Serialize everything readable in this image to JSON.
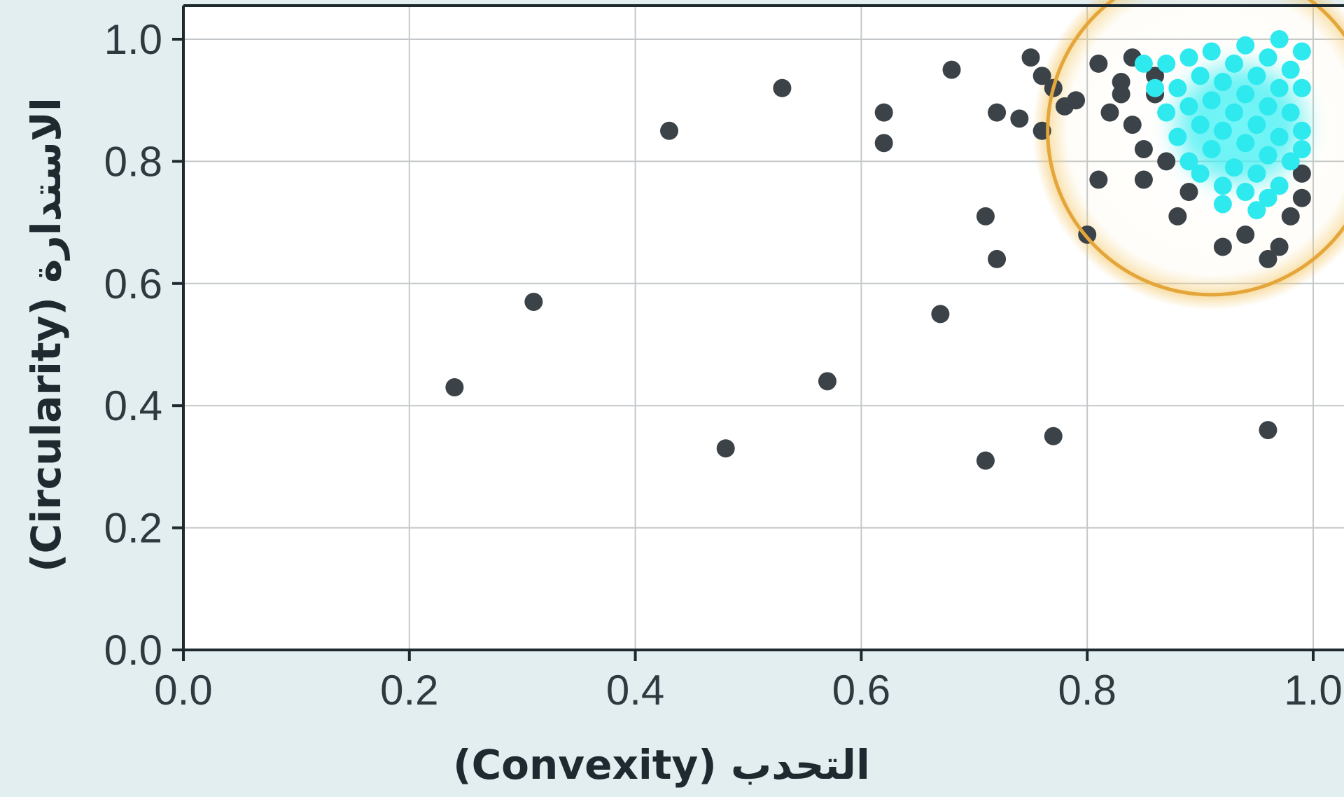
{
  "chart_data": {
    "type": "scatter",
    "title": "",
    "xlabel": "التحدب (Convexity)",
    "ylabel": "الاستدارة (Circularity)",
    "xlim": [
      0.0,
      1.0
    ],
    "ylim": [
      0.0,
      1.0
    ],
    "x_ticks": [
      "0.0",
      "0.2",
      "0.4",
      "0.6",
      "0.8",
      "1.0"
    ],
    "y_ticks": [
      "0.0",
      "0.2",
      "0.4",
      "0.6",
      "0.8",
      "1.0"
    ],
    "grid": true,
    "legend": "none",
    "highlight": {
      "shape": "circle",
      "center": [
        0.91,
        0.85
      ],
      "radius_x": 0.145,
      "color": "#e4a63a"
    },
    "colors": {
      "background": "#e3eef1",
      "plot_background": "#ffffff",
      "grid": "#c4c8ca",
      "axis": "#1f2a30",
      "point_dark": "#3b4348",
      "point_highlight": "#2ee9ee",
      "highlight_ring": "#e4a63a"
    },
    "series": [
      {
        "color": "#3b4348",
        "points": [
          [
            0.24,
            0.43
          ],
          [
            0.31,
            0.57
          ],
          [
            0.43,
            0.85
          ],
          [
            0.48,
            0.33
          ],
          [
            0.53,
            0.92
          ],
          [
            0.57,
            0.44
          ],
          [
            0.62,
            0.88
          ],
          [
            0.62,
            0.83
          ],
          [
            0.67,
            0.55
          ],
          [
            0.68,
            0.95
          ],
          [
            0.71,
            0.71
          ],
          [
            0.71,
            0.31
          ],
          [
            0.72,
            0.88
          ],
          [
            0.72,
            0.64
          ],
          [
            0.74,
            0.87
          ],
          [
            0.75,
            0.97
          ],
          [
            0.76,
            0.94
          ],
          [
            0.76,
            0.85
          ],
          [
            0.77,
            0.35
          ],
          [
            0.77,
            0.92
          ],
          [
            0.78,
            0.89
          ],
          [
            0.79,
            0.9
          ],
          [
            0.8,
            0.68
          ],
          [
            0.81,
            0.96
          ],
          [
            0.81,
            0.77
          ],
          [
            0.82,
            0.88
          ],
          [
            0.83,
            0.93
          ],
          [
            0.84,
            0.97
          ],
          [
            0.84,
            0.86
          ],
          [
            0.85,
            0.82
          ],
          [
            0.85,
            0.77
          ],
          [
            0.86,
            0.94
          ],
          [
            0.87,
            0.8
          ],
          [
            0.88,
            0.71
          ],
          [
            0.89,
            0.75
          ],
          [
            0.92,
            0.66
          ],
          [
            0.94,
            0.68
          ],
          [
            0.96,
            0.64
          ],
          [
            0.96,
            0.36
          ],
          [
            0.97,
            0.66
          ],
          [
            0.98,
            0.71
          ],
          [
            0.99,
            0.74
          ],
          [
            0.99,
            0.78
          ],
          [
            0.83,
            0.91
          ],
          [
            0.86,
            0.91
          ]
        ]
      },
      {
        "color": "#2ee9ee",
        "points": [
          [
            0.85,
            0.96
          ],
          [
            0.86,
            0.92
          ],
          [
            0.87,
            0.88
          ],
          [
            0.87,
            0.96
          ],
          [
            0.88,
            0.84
          ],
          [
            0.88,
            0.92
          ],
          [
            0.89,
            0.8
          ],
          [
            0.89,
            0.89
          ],
          [
            0.89,
            0.97
          ],
          [
            0.9,
            0.78
          ],
          [
            0.9,
            0.86
          ],
          [
            0.9,
            0.94
          ],
          [
            0.91,
            0.82
          ],
          [
            0.91,
            0.9
          ],
          [
            0.91,
            0.98
          ],
          [
            0.92,
            0.76
          ],
          [
            0.92,
            0.85
          ],
          [
            0.92,
            0.93
          ],
          [
            0.93,
            0.79
          ],
          [
            0.93,
            0.88
          ],
          [
            0.93,
            0.96
          ],
          [
            0.94,
            0.75
          ],
          [
            0.94,
            0.83
          ],
          [
            0.94,
            0.91
          ],
          [
            0.94,
            0.99
          ],
          [
            0.95,
            0.78
          ],
          [
            0.95,
            0.86
          ],
          [
            0.95,
            0.94
          ],
          [
            0.96,
            0.81
          ],
          [
            0.96,
            0.89
          ],
          [
            0.96,
            0.97
          ],
          [
            0.97,
            0.76
          ],
          [
            0.97,
            0.84
          ],
          [
            0.97,
            0.92
          ],
          [
            0.97,
            1.0
          ],
          [
            0.98,
            0.8
          ],
          [
            0.98,
            0.88
          ],
          [
            0.98,
            0.95
          ],
          [
            0.99,
            0.85
          ],
          [
            0.99,
            0.92
          ],
          [
            0.99,
            0.98
          ],
          [
            0.95,
            0.72
          ],
          [
            0.92,
            0.73
          ],
          [
            0.99,
            0.82
          ],
          [
            0.96,
            0.74
          ]
        ]
      }
    ]
  }
}
